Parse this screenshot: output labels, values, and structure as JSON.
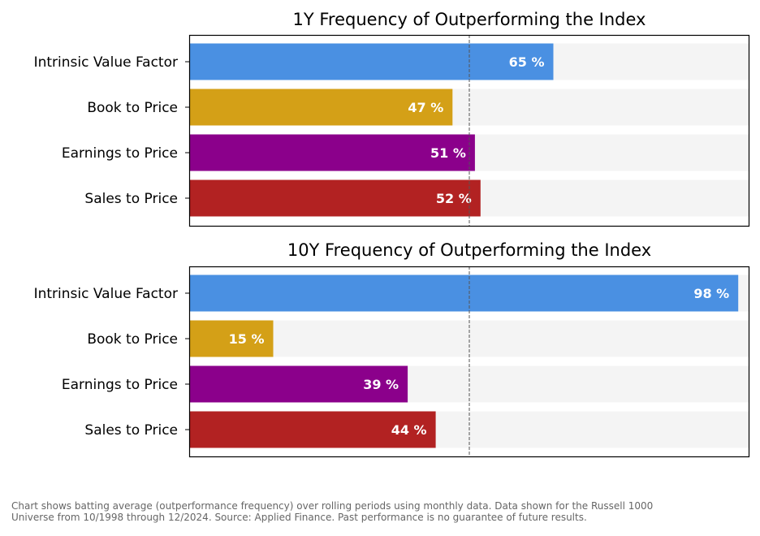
{
  "chart_data": [
    {
      "type": "bar",
      "orientation": "horizontal",
      "title": "1Y Frequency of Outperforming the Index",
      "categories": [
        "Intrinsic Value Factor",
        "Book to Price",
        "Earnings to Price",
        "Sales to Price"
      ],
      "values": [
        65,
        47,
        51,
        52
      ],
      "value_labels": [
        "65 %",
        "47 %",
        "51 %",
        "52 %"
      ],
      "colors": [
        "#4a90e2",
        "#d4a017",
        "#8b008b",
        "#b22222"
      ],
      "background_bar_color": "#f4f4f4",
      "xlim": [
        0,
        100
      ],
      "reference_line": 50,
      "grid": false
    },
    {
      "type": "bar",
      "orientation": "horizontal",
      "title": "10Y Frequency of Outperforming the Index",
      "categories": [
        "Intrinsic Value Factor",
        "Book to Price",
        "Earnings to Price",
        "Sales to Price"
      ],
      "values": [
        98,
        15,
        39,
        44
      ],
      "value_labels": [
        "98 %",
        "15 %",
        "39 %",
        "44 %"
      ],
      "colors": [
        "#4a90e2",
        "#d4a017",
        "#8b008b",
        "#b22222"
      ],
      "background_bar_color": "#f4f4f4",
      "xlim": [
        0,
        100
      ],
      "reference_line": 50,
      "grid": false
    }
  ],
  "footnote": {
    "line1": "Chart shows batting average (outperformance frequency) over rolling periods using monthly data. Data shown for the Russell 1000",
    "line2": "Universe from 10/1998 through 12/2024. Source: Applied Finance. Past performance is no guarantee of future results."
  }
}
